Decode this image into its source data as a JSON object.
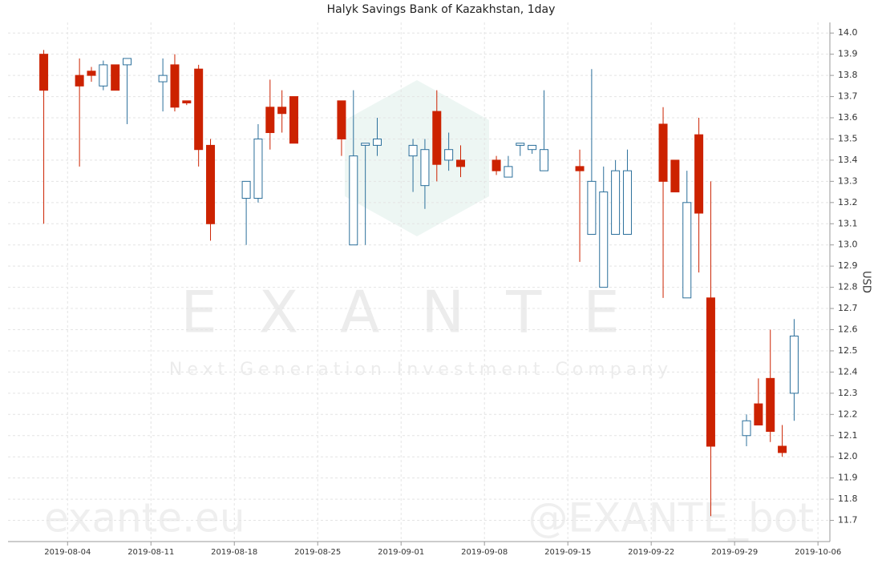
{
  "chart_data": {
    "type": "candlestick",
    "title": "Halyk Savings Bank of Kazakhstan, 1day",
    "y_label": "USD",
    "watermark": {
      "brand": "EXANTE",
      "tagline": "Next Generation Investment Company",
      "site": "exante.eu",
      "bot": "@EXANTE_bot"
    },
    "x": [
      "2019-08-02",
      "2019-08-05",
      "2019-08-06",
      "2019-08-07",
      "2019-08-08",
      "2019-08-09",
      "2019-08-12",
      "2019-08-13",
      "2019-08-14",
      "2019-08-15",
      "2019-08-16",
      "2019-08-19",
      "2019-08-20",
      "2019-08-21",
      "2019-08-22",
      "2019-08-23",
      "2019-08-27",
      "2019-08-28",
      "2019-08-29",
      "2019-08-30",
      "2019-09-02",
      "2019-09-03",
      "2019-09-04",
      "2019-09-05",
      "2019-09-06",
      "2019-09-09",
      "2019-09-10",
      "2019-09-11",
      "2019-09-12",
      "2019-09-13",
      "2019-09-16",
      "2019-09-17",
      "2019-09-18",
      "2019-09-19",
      "2019-09-20",
      "2019-09-23",
      "2019-09-24",
      "2019-09-25",
      "2019-09-26",
      "2019-09-27",
      "2019-09-30",
      "2019-10-01",
      "2019-10-02",
      "2019-10-03",
      "2019-10-04"
    ],
    "open": [
      13.9,
      13.8,
      13.82,
      13.75,
      13.85,
      13.85,
      13.77,
      13.85,
      13.68,
      13.83,
      13.47,
      13.22,
      13.22,
      13.65,
      13.65,
      13.7,
      13.68,
      13.0,
      13.47,
      13.47,
      13.42,
      13.28,
      13.63,
      13.4,
      13.4,
      13.4,
      13.32,
      13.47,
      13.45,
      13.35,
      13.37,
      13.05,
      12.8,
      13.05,
      13.05,
      13.57,
      13.4,
      12.75,
      13.52,
      12.75,
      12.1,
      12.25,
      12.37,
      12.05,
      12.3
    ],
    "high": [
      13.92,
      13.88,
      13.84,
      13.87,
      13.85,
      13.88,
      13.88,
      13.9,
      13.68,
      13.85,
      13.5,
      13.3,
      13.57,
      13.78,
      13.73,
      13.7,
      13.68,
      13.73,
      13.48,
      13.6,
      13.5,
      13.5,
      13.73,
      13.53,
      13.47,
      13.42,
      13.42,
      13.48,
      13.47,
      13.73,
      13.45,
      13.83,
      13.37,
      13.4,
      13.45,
      13.65,
      13.4,
      13.35,
      13.6,
      13.3,
      12.2,
      12.37,
      12.6,
      12.15,
      12.65
    ],
    "low": [
      13.1,
      13.37,
      13.77,
      13.73,
      13.73,
      13.57,
      13.63,
      13.63,
      13.66,
      13.37,
      13.02,
      13.0,
      13.2,
      13.45,
      13.53,
      13.48,
      13.42,
      13.0,
      13.0,
      13.42,
      13.25,
      13.17,
      13.3,
      13.35,
      13.32,
      13.33,
      13.32,
      13.42,
      13.43,
      13.35,
      12.92,
      13.05,
      12.8,
      13.05,
      13.05,
      12.75,
      13.25,
      12.75,
      12.87,
      11.72,
      12.05,
      12.15,
      12.07,
      12.0,
      12.17
    ],
    "close": [
      13.73,
      13.75,
      13.8,
      13.85,
      13.73,
      13.88,
      13.8,
      13.65,
      13.67,
      13.45,
      13.1,
      13.3,
      13.5,
      13.53,
      13.62,
      13.48,
      13.5,
      13.42,
      13.48,
      13.5,
      13.47,
      13.45,
      13.38,
      13.45,
      13.37,
      13.35,
      13.37,
      13.48,
      13.47,
      13.45,
      13.35,
      13.3,
      13.25,
      13.35,
      13.35,
      13.3,
      13.25,
      13.2,
      13.15,
      12.05,
      12.17,
      12.15,
      12.12,
      12.02,
      12.57
    ],
    "up_color": "#2b6f9b",
    "down_color": "#cc2200",
    "xlim": [
      "2019-07-30",
      "2019-10-07"
    ],
    "xticks": [
      "2019-08-04",
      "2019-08-11",
      "2019-08-18",
      "2019-08-25",
      "2019-09-01",
      "2019-09-08",
      "2019-09-15",
      "2019-09-22",
      "2019-09-29",
      "2019-10-06"
    ],
    "ylim": [
      11.6,
      14.05
    ],
    "yticks": [
      {
        "value": 14,
        "label": "14.0"
      },
      13.9,
      13.8,
      13.7,
      13.6,
      13.5,
      13.4,
      13.3,
      13.2,
      13.1,
      {
        "value": 13,
        "label": "13.0"
      },
      12.9,
      12.8,
      12.7,
      12.6,
      12.5,
      12.4,
      12.3,
      12.2,
      12.1,
      {
        "value": 12,
        "label": "12.0"
      },
      11.9,
      11.8,
      11.7
    ],
    "grid": true
  }
}
